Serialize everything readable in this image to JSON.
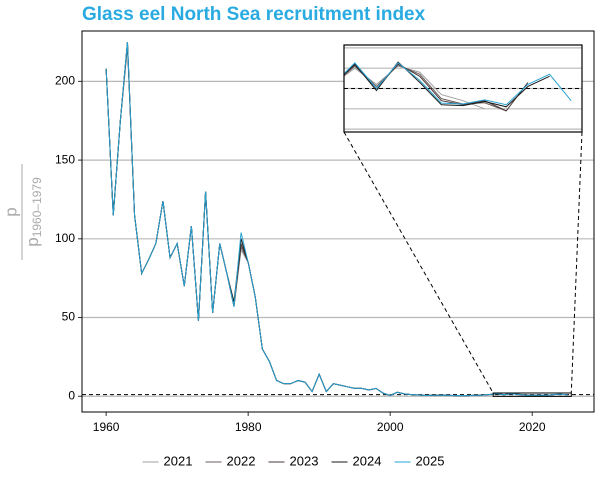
{
  "chart_data": {
    "type": "line",
    "title": "Glass eel North Sea recruitment index",
    "y_label_numerator": "p",
    "y_label_denominator": "p",
    "y_label_subscript": "1960–1979",
    "x": [
      1960,
      1961,
      1962,
      1963,
      1964,
      1965,
      1966,
      1967,
      1968,
      1969,
      1970,
      1971,
      1972,
      1973,
      1974,
      1975,
      1976,
      1977,
      1978,
      1979,
      1980,
      1981,
      1982,
      1983,
      1984,
      1985,
      1986,
      1987,
      1988,
      1989,
      1990,
      1991,
      1992,
      1993,
      1994,
      1995,
      1996,
      1997,
      1998,
      1999,
      2000,
      2001,
      2002,
      2003,
      2004,
      2005,
      2006,
      2007,
      2008,
      2009,
      2010,
      2011,
      2012,
      2013,
      2014,
      2015,
      2016,
      2017,
      2018,
      2019,
      2020,
      2021,
      2022,
      2023,
      2024,
      2025
    ],
    "series": [
      {
        "name": "2021",
        "color": "#a0a0a0",
        "values": [
          208,
          115,
          175,
          225,
          115,
          78,
          87,
          97,
          124,
          88,
          97,
          70,
          108,
          48,
          130,
          53,
          97,
          78,
          57,
          93,
          85,
          63,
          30,
          22,
          10,
          8,
          8,
          10,
          9,
          3,
          14,
          3,
          8,
          7,
          6,
          5,
          5,
          4,
          5,
          2,
          0.5,
          2.5,
          1.5,
          1,
          0.8,
          0.5,
          0.6,
          0.6,
          0.7,
          0.4,
          0.5,
          0.4,
          0.6,
          0.7,
          1.1,
          1.5,
          1.1,
          1.55,
          1.4,
          0.85,
          0.7,
          0.5,
          null,
          null,
          null,
          null
        ]
      },
      {
        "name": "2022",
        "color": "#6e5c5c",
        "values": [
          208,
          115,
          175,
          225,
          115,
          78,
          87,
          97,
          124,
          88,
          97,
          70,
          108,
          48,
          130,
          53,
          97,
          78,
          57,
          95,
          85,
          63,
          30,
          22,
          10,
          8,
          8,
          10,
          9,
          3,
          14,
          3,
          8,
          7,
          6,
          5,
          5,
          4,
          5,
          2,
          0.5,
          2.5,
          1.5,
          1,
          0.8,
          0.5,
          0.6,
          0.6,
          0.7,
          0.4,
          0.5,
          0.4,
          0.6,
          0.7,
          1.1,
          1.55,
          1.05,
          1.58,
          1.35,
          0.75,
          0.62,
          0.65,
          0.45,
          null,
          null,
          null
        ]
      },
      {
        "name": "2023",
        "color": "#4a3a3a",
        "values": [
          208,
          115,
          175,
          222,
          115,
          78,
          87,
          97,
          124,
          88,
          97,
          70,
          108,
          48,
          130,
          53,
          97,
          78,
          57,
          97,
          85,
          63,
          30,
          22,
          10,
          8,
          8,
          10,
          9,
          3,
          14,
          3,
          8,
          7,
          6,
          5,
          5,
          4,
          5,
          2,
          0.5,
          2.5,
          1.5,
          1,
          0.8,
          0.5,
          0.6,
          0.6,
          0.7,
          0.4,
          0.5,
          0.4,
          0.6,
          0.7,
          1.1,
          1.58,
          1.0,
          1.6,
          1.3,
          0.7,
          0.6,
          0.7,
          0.45,
          1.15,
          null,
          null
        ]
      },
      {
        "name": "2024",
        "color": "#1a1a1a",
        "values": [
          208,
          115,
          175,
          225,
          115,
          78,
          87,
          97,
          124,
          88,
          97,
          70,
          108,
          48,
          130,
          53,
          97,
          78,
          60,
          100,
          85,
          63,
          30,
          22,
          10,
          8,
          8,
          10,
          9,
          3,
          14,
          3,
          8,
          7,
          6,
          5,
          5,
          4,
          5,
          2,
          0.5,
          2.5,
          1.5,
          1,
          0.8,
          0.5,
          0.6,
          0.6,
          0.7,
          0.4,
          0.5,
          0.4,
          0.6,
          0.7,
          1.1,
          1.6,
          0.95,
          1.65,
          1.15,
          0.6,
          0.58,
          0.68,
          0.55,
          1.05,
          1.3,
          null
        ]
      },
      {
        "name": "2025",
        "color": "#29a3d4",
        "values": [
          208,
          115,
          175,
          225,
          115,
          78,
          87,
          97,
          124,
          88,
          97,
          70,
          108,
          48,
          130,
          53,
          97,
          78,
          57,
          104,
          85,
          63,
          30,
          22,
          10,
          8,
          8,
          10,
          9,
          3,
          14,
          3,
          8,
          7,
          6,
          5,
          5,
          4,
          5,
          2,
          0.5,
          2.5,
          1.5,
          1,
          0.8,
          0.5,
          0.6,
          0.6,
          0.7,
          0.4,
          0.5,
          0.4,
          0.6,
          0.7,
          1.1,
          1.63,
          1.0,
          1.63,
          1.2,
          0.64,
          0.62,
          0.72,
          0.6,
          1.1,
          1.35,
          0.7
        ]
      }
    ],
    "xlim": [
      1956.6,
      2028.7
    ],
    "ylim": [
      -10,
      232
    ],
    "xticks": [
      1960,
      1980,
      2000,
      2020
    ],
    "yticks": [
      0,
      50,
      100,
      150,
      200
    ],
    "grid": true,
    "reference_line": 1,
    "inset": {
      "xlim": [
        2014.5,
        2025.5
      ],
      "ylim": [
        -0.07,
        2.07
      ],
      "yticks": [
        0,
        0.5,
        1,
        1.5,
        2
      ]
    },
    "legend": "bottom"
  }
}
